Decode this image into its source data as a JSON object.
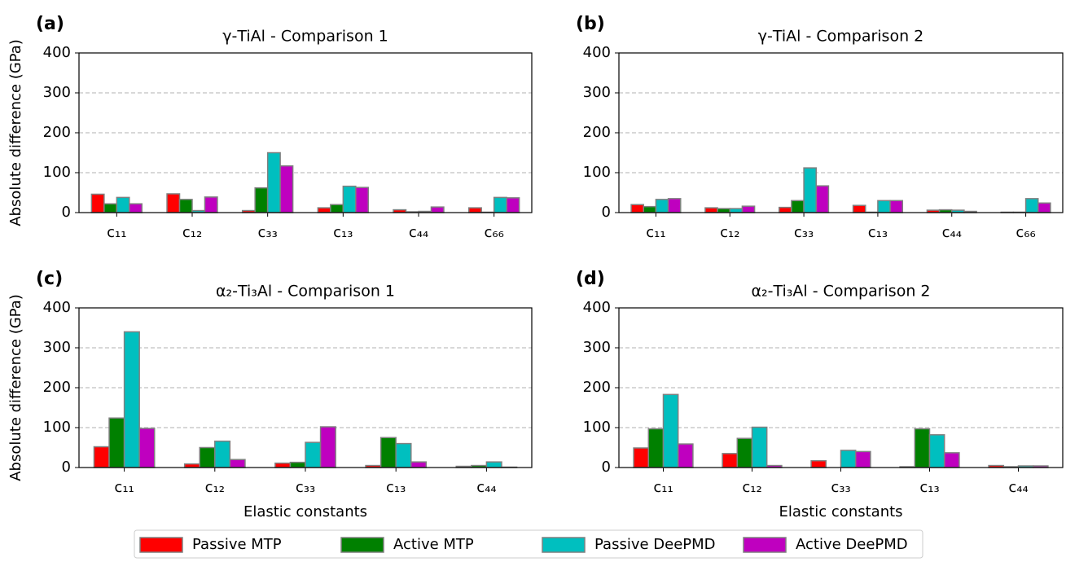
{
  "chart_data": [
    {
      "type": "bar",
      "panel_label": "(a)",
      "title": "γ-TiAl - Comparison 1",
      "ylabel": "Absolute difference (GPa)",
      "categories": [
        "c₁₁",
        "c₁₂",
        "c₃₃",
        "c₁₃",
        "c₄₄",
        "c₆₆"
      ],
      "series": [
        {
          "name": "Passive MTP",
          "color": "#ff0000",
          "values": [
            46,
            47,
            5,
            12,
            7,
            12
          ]
        },
        {
          "name": "Active MTP",
          "color": "#008000",
          "values": [
            22,
            33,
            62,
            20,
            2,
            1
          ]
        },
        {
          "name": "Passive DeePMD",
          "color": "#00bfbf",
          "values": [
            38,
            5,
            150,
            66,
            3,
            38
          ]
        },
        {
          "name": "Active DeePMD",
          "color": "#bf00bf",
          "values": [
            22,
            39,
            117,
            63,
            14,
            37
          ]
        }
      ],
      "ylim": [
        0,
        400
      ],
      "yticks": [
        0,
        100,
        200,
        300,
        400
      ],
      "grid": true
    },
    {
      "type": "bar",
      "panel_label": "(b)",
      "title": "γ-TiAl - Comparison 2",
      "categories": [
        "c₁₁",
        "c₁₂",
        "c₃₃",
        "c₁₃",
        "c₄₄",
        "c₆₆"
      ],
      "series": [
        {
          "name": "Passive MTP",
          "color": "#ff0000",
          "values": [
            20,
            12,
            13,
            18,
            6,
            1
          ]
        },
        {
          "name": "Active MTP",
          "color": "#008000",
          "values": [
            15,
            10,
            30,
            1,
            7,
            1
          ]
        },
        {
          "name": "Passive DeePMD",
          "color": "#00bfbf",
          "values": [
            33,
            10,
            112,
            30,
            6,
            35
          ]
        },
        {
          "name": "Active DeePMD",
          "color": "#bf00bf",
          "values": [
            35,
            16,
            67,
            30,
            3,
            24
          ]
        }
      ],
      "ylim": [
        0,
        400
      ],
      "yticks": [
        0,
        100,
        200,
        300,
        400
      ],
      "grid": true
    },
    {
      "type": "bar",
      "panel_label": "(c)",
      "title": "α₂-Ti₃Al - Comparison 1",
      "ylabel": "Absolute difference (GPa)",
      "xlabel": "Elastic constants",
      "categories": [
        "c₁₁",
        "c₁₂",
        "c₃₃",
        "c₁₃",
        "c₄₄"
      ],
      "series": [
        {
          "name": "Passive MTP",
          "color": "#ff0000",
          "values": [
            52,
            9,
            11,
            5,
            3
          ]
        },
        {
          "name": "Active MTP",
          "color": "#008000",
          "values": [
            124,
            50,
            13,
            75,
            5
          ]
        },
        {
          "name": "Passive DeePMD",
          "color": "#00bfbf",
          "values": [
            340,
            66,
            63,
            60,
            14
          ]
        },
        {
          "name": "Active DeePMD",
          "color": "#bf00bf",
          "values": [
            98,
            20,
            102,
            14,
            1
          ]
        }
      ],
      "ylim": [
        0,
        400
      ],
      "yticks": [
        0,
        100,
        200,
        300,
        400
      ],
      "grid": true
    },
    {
      "type": "bar",
      "panel_label": "(d)",
      "title": "α₂-Ti₃Al - Comparison 2",
      "xlabel": "Elastic constants",
      "categories": [
        "c₁₁",
        "c₁₂",
        "c₃₃",
        "c₁₃",
        "c₄₄"
      ],
      "series": [
        {
          "name": "Passive MTP",
          "color": "#ff0000",
          "values": [
            49,
            35,
            17,
            2,
            5
          ]
        },
        {
          "name": "Active MTP",
          "color": "#008000",
          "values": [
            97,
            73,
            0,
            97,
            2
          ]
        },
        {
          "name": "Passive DeePMD",
          "color": "#00bfbf",
          "values": [
            183,
            101,
            43,
            82,
            4
          ]
        },
        {
          "name": "Active DeePMD",
          "color": "#bf00bf",
          "values": [
            59,
            5,
            40,
            37,
            4
          ]
        }
      ],
      "ylim": [
        0,
        400
      ],
      "yticks": [
        0,
        100,
        200,
        300,
        400
      ],
      "grid": true
    }
  ]
}
